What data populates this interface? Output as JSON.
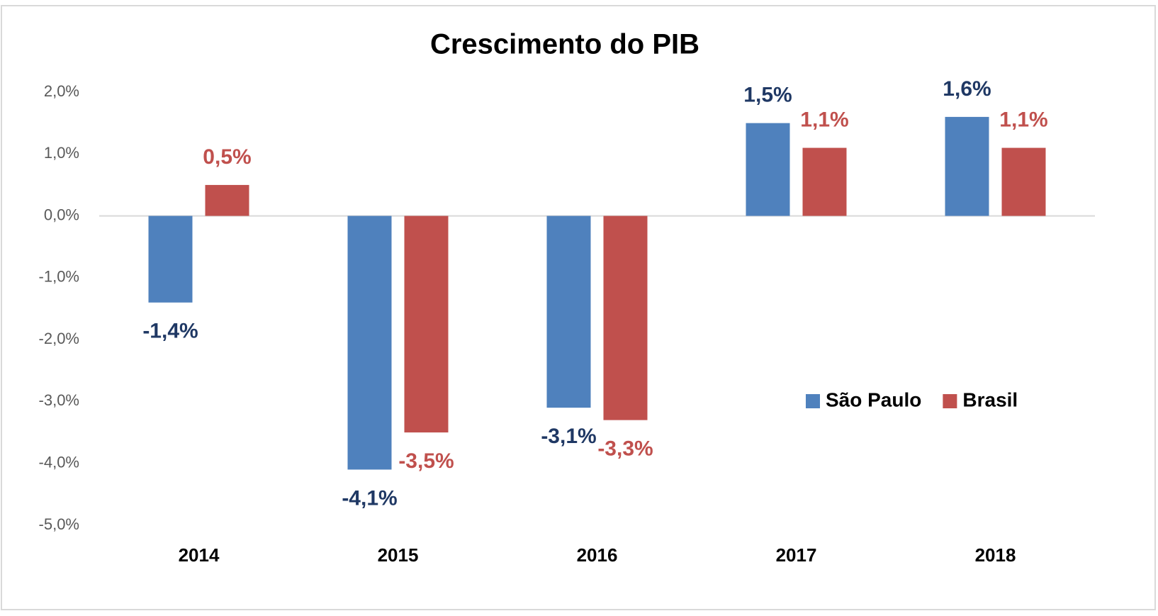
{
  "chart_data": {
    "type": "bar",
    "title": "Crescimento do PIB",
    "categories": [
      "2014",
      "2015",
      "2016",
      "2017",
      "2018"
    ],
    "series": [
      {
        "name": "São Paulo",
        "color": "#4f81bd",
        "label_color": "#1f3864",
        "values": [
          -1.4,
          -4.1,
          -3.1,
          1.5,
          1.6
        ],
        "value_labels": [
          "-1,4%",
          "-4,1%",
          "-3,1%",
          "1,5%",
          "1,6%"
        ]
      },
      {
        "name": "Brasil",
        "color": "#c0504d",
        "label_color": "#c0504d",
        "values": [
          0.5,
          -3.5,
          -3.3,
          1.1,
          1.1
        ],
        "value_labels": [
          "0,5%",
          "-3,5%",
          "-3,3%",
          "1,1%",
          "1,1%"
        ]
      }
    ],
    "ylim": [
      -5,
      2
    ],
    "yticks": [
      {
        "value": 2,
        "label": "2,0%"
      },
      {
        "value": 1,
        "label": "1,0%"
      },
      {
        "value": 0,
        "label": "0,0%"
      },
      {
        "value": -1,
        "label": "-1,0%"
      },
      {
        "value": -2,
        "label": "-2,0%"
      },
      {
        "value": -3,
        "label": "-3,0%"
      },
      {
        "value": -4,
        "label": "-4,0%"
      },
      {
        "value": -5,
        "label": "-5,0%"
      }
    ],
    "grid": false,
    "legend": "right"
  }
}
